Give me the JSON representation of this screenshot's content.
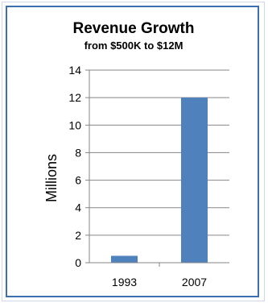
{
  "chart_data": {
    "type": "bar",
    "title": "Revenue Growth",
    "subtitle": "from $500K to $12M",
    "xlabel": "",
    "ylabel": "Millions",
    "categories": [
      "1993",
      "2007"
    ],
    "values": [
      0.5,
      12
    ],
    "ylim": [
      0,
      14
    ],
    "yticks": [
      "0",
      "2",
      "4",
      "6",
      "8",
      "10",
      "12",
      "14"
    ],
    "grid": true,
    "legend": "none",
    "bar_color": "#4f81bd",
    "gridline_color": "#868686",
    "border_color": "#3f6fb0"
  }
}
